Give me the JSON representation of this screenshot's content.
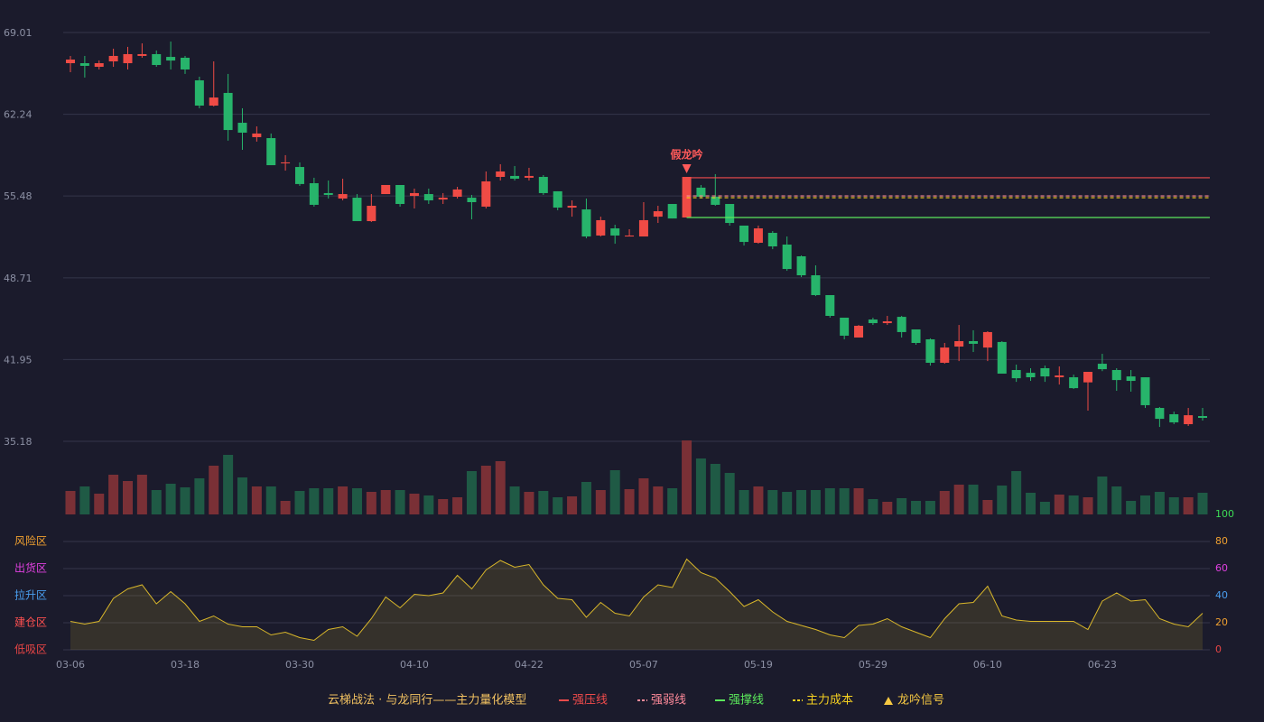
{
  "chart_data": {
    "type": "candlestick",
    "categories": [
      "03-06",
      null,
      null,
      null,
      null,
      null,
      null,
      null,
      "03-18",
      null,
      null,
      null,
      null,
      null,
      null,
      null,
      "03-30",
      null,
      null,
      null,
      null,
      null,
      null,
      null,
      "04-10",
      null,
      null,
      null,
      null,
      null,
      null,
      null,
      "04-22",
      null,
      null,
      null,
      null,
      null,
      null,
      null,
      "05-07",
      null,
      null,
      null,
      null,
      null,
      null,
      null,
      "05-19",
      null,
      null,
      null,
      null,
      null,
      null,
      null,
      "05-29",
      null,
      null,
      null,
      null,
      null,
      null,
      null,
      "06-10",
      null,
      null,
      null,
      null,
      null,
      null,
      null,
      "06-23",
      null,
      null,
      null,
      null,
      null,
      null,
      null
    ],
    "open": [
      66.47,
      66.47,
      66.17,
      66.62,
      66.47,
      67.07,
      67.22,
      66.99,
      66.92,
      65.05,
      62.96,
      64.01,
      61.54,
      60.35,
      60.27,
      58.18,
      57.88,
      56.54,
      55.72,
      55.27,
      55.34,
      53.4,
      55.64,
      56.39,
      55.49,
      55.64,
      55.19,
      55.42,
      55.34,
      54.6,
      57.06,
      57.14,
      56.99,
      57.06,
      55.87,
      54.52,
      54.37,
      52.21,
      52.8,
      52.13,
      52.13,
      53.77,
      54.82,
      53.7,
      56.17,
      55.42,
      54.82,
      53.03,
      51.61,
      52.43,
      51.46,
      50.49,
      48.92,
      47.28,
      45.41,
      43.77,
      45.26,
      44.96,
      45.48,
      44.44,
      43.62,
      41.68,
      43.02,
      43.47,
      42.94,
      43.4,
      41.08,
      40.85,
      41.23,
      40.48,
      40.48,
      40.06,
      41.6,
      41.08,
      40.55,
      40.48,
      37.94,
      37.42,
      36.6,
      37.27
    ],
    "close": [
      66.77,
      66.25,
      66.47,
      67.07,
      67.22,
      67.22,
      66.32,
      66.69,
      65.95,
      62.96,
      63.63,
      60.94,
      60.72,
      60.65,
      58.03,
      58.26,
      56.47,
      54.75,
      55.57,
      55.64,
      53.4,
      54.67,
      56.39,
      54.82,
      55.72,
      55.12,
      55.34,
      56.02,
      54.97,
      56.69,
      57.51,
      56.91,
      57.14,
      55.72,
      54.52,
      54.67,
      52.13,
      53.48,
      52.21,
      52.21,
      53.48,
      54.22,
      53.62,
      57.06,
      55.42,
      54.75,
      53.25,
      51.68,
      52.8,
      51.31,
      49.44,
      48.92,
      47.28,
      45.56,
      43.92,
      44.74,
      44.96,
      45.11,
      44.22,
      43.32,
      41.68,
      42.94,
      43.47,
      43.25,
      44.22,
      40.78,
      40.4,
      40.48,
      40.55,
      40.63,
      39.58,
      40.93,
      41.15,
      40.25,
      40.18,
      38.17,
      37.04,
      36.75,
      37.34,
      37.12
    ],
    "low": [
      65.72,
      65.28,
      65.95,
      66.17,
      65.95,
      66.92,
      66.17,
      65.95,
      65.58,
      62.74,
      62.89,
      60.06,
      59.3,
      59.98,
      58.03,
      57.58,
      56.32,
      54.6,
      55.27,
      55.12,
      53.4,
      53.33,
      55.64,
      54.6,
      54.45,
      54.82,
      54.82,
      55.27,
      53.55,
      54.45,
      56.76,
      56.76,
      56.76,
      55.57,
      54.3,
      53.77,
      51.98,
      52.13,
      51.53,
      52.13,
      52.13,
      53.25,
      53.62,
      53.7,
      55.27,
      54.67,
      53.03,
      51.38,
      51.53,
      51.08,
      49.29,
      48.77,
      47.2,
      45.41,
      43.62,
      43.77,
      44.81,
      44.81,
      43.77,
      43.17,
      41.45,
      41.6,
      41.82,
      42.57,
      41.82,
      40.78,
      40.1,
      40.18,
      40.1,
      39.88,
      39.51,
      37.72,
      40.99,
      39.36,
      39.29,
      37.94,
      36.37,
      36.6,
      36.45,
      36.9
    ],
    "high": [
      67.07,
      67.07,
      66.7,
      67.67,
      67.82,
      68.11,
      67.52,
      68.26,
      67.07,
      65.35,
      66.62,
      65.58,
      62.74,
      61.24,
      60.65,
      58.86,
      58.26,
      56.99,
      56.76,
      56.91,
      55.64,
      55.64,
      56.39,
      56.39,
      56.09,
      56.09,
      55.72,
      56.24,
      55.57,
      57.51,
      58.11,
      57.96,
      57.81,
      57.21,
      55.87,
      55.12,
      55.27,
      53.77,
      53.1,
      52.73,
      54.97,
      54.67,
      54.82,
      57.06,
      56.39,
      57.29,
      54.82,
      53.03,
      53.03,
      52.58,
      52.13,
      50.56,
      49.74,
      47.28,
      45.41,
      44.81,
      45.41,
      45.56,
      45.56,
      44.44,
      43.7,
      43.32,
      44.81,
      44.37,
      44.29,
      43.47,
      41.53,
      41.23,
      41.45,
      41.38,
      40.7,
      40.93,
      42.42,
      41.23,
      41.08,
      40.48,
      38.02,
      37.64,
      37.94,
      37.94
    ],
    "up_color": "#ef4b45",
    "down_color": "#27b46b",
    "volume_up_color": "#7a3036",
    "volume_down_color": "#1f5a45",
    "ylim": [
      35.18,
      69.01
    ],
    "yticks": [
      35.18,
      41.95,
      48.71,
      55.48,
      62.24,
      69.01
    ],
    "grid": true,
    "volume": [
      26,
      31,
      23,
      44,
      37,
      44,
      27,
      34,
      30,
      40,
      54,
      66,
      41,
      31,
      31,
      15,
      26,
      29,
      29,
      31,
      29,
      25,
      27,
      27,
      23,
      21,
      17,
      19,
      48,
      54,
      59,
      31,
      25,
      26,
      19,
      20,
      36,
      27,
      49,
      28,
      40,
      31,
      29,
      82,
      62,
      56,
      46,
      27,
      31,
      27,
      25,
      27,
      27,
      29,
      29,
      29,
      17,
      14,
      18,
      15,
      15,
      26,
      33,
      33,
      16,
      32,
      48,
      24,
      14,
      22,
      21,
      19,
      42,
      31,
      15,
      21,
      25,
      19,
      19,
      24
    ],
    "levels": [
      {
        "name": "强压线",
        "value": 56.99,
        "color": "#ef4b4b",
        "dashed": false
      },
      {
        "name": "强弱线",
        "value": 55.49,
        "color": "#ff8a9a",
        "dashed": true
      },
      {
        "name": "强撑线",
        "value": 53.7,
        "color": "#5be85b",
        "dashed": false
      },
      {
        "name": "主力成本",
        "value": 55.34,
        "color": "#f5d020",
        "dashed": true
      }
    ],
    "signal": {
      "name": "龙吟信号",
      "color": "#ff5a5a",
      "legend_color": "#f5c842",
      "labels": [
        null,
        null,
        null,
        null,
        null,
        null,
        null,
        null,
        null,
        null,
        null,
        null,
        null,
        null,
        null,
        null,
        null,
        null,
        null,
        null,
        null,
        null,
        null,
        null,
        null,
        null,
        null,
        null,
        null,
        null,
        null,
        null,
        null,
        null,
        null,
        null,
        null,
        null,
        null,
        null,
        null,
        null,
        null,
        "假龙吟",
        null,
        null,
        null,
        null,
        null,
        null,
        null,
        null,
        null,
        null,
        null,
        null,
        null,
        null,
        null,
        null,
        null,
        null,
        null,
        null,
        null,
        null,
        null,
        null,
        null,
        null,
        null,
        null,
        null,
        null,
        null,
        null,
        null,
        null,
        null,
        null
      ]
    },
    "model_title": "云梯战法 · 与龙同行——主力量化模型",
    "indicator": {
      "color": "#d8b62a",
      "values": [
        21,
        19,
        21,
        38,
        45,
        48,
        34,
        43,
        34,
        21,
        25,
        19,
        17,
        17,
        11,
        13,
        9,
        7,
        15,
        17,
        10,
        23,
        39,
        31,
        41,
        40,
        42,
        55,
        45,
        59,
        66,
        61,
        63,
        48,
        38,
        37,
        24,
        35,
        27,
        25,
        39,
        48,
        46,
        67,
        57,
        53,
        43,
        32,
        37,
        28,
        21,
        18,
        15,
        11,
        9,
        18,
        19,
        23,
        17,
        13,
        9,
        23,
        34,
        35,
        47,
        25,
        22,
        21,
        21,
        21,
        21,
        15,
        36,
        42,
        36,
        37,
        23,
        19,
        17,
        27
      ],
      "ylim": [
        0,
        100
      ],
      "yticks": [
        0,
        20,
        40,
        60,
        80,
        100
      ],
      "tick_colors": [
        "#e84545",
        "#f0a030",
        "#4a9ff0",
        "#e040e0",
        "#f0a030",
        "#3ddc55"
      ],
      "zones": [
        {
          "label": "低吸区",
          "value": 0,
          "color": "#e84545"
        },
        {
          "label": "建仓区",
          "value": 20,
          "color": "#ff5050"
        },
        {
          "label": "拉升区",
          "value": 40,
          "color": "#4a9ff0"
        },
        {
          "label": "出货区",
          "value": 60,
          "color": "#e040e0"
        },
        {
          "label": "风险区",
          "value": 80,
          "color": "#f0a030"
        }
      ]
    }
  }
}
